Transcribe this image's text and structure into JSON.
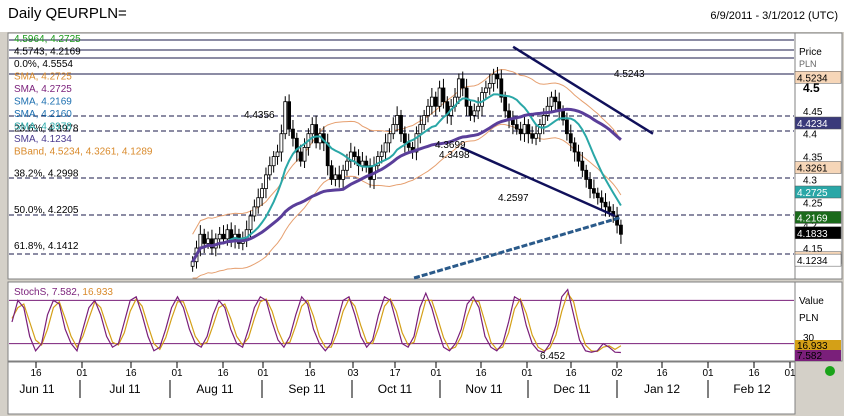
{
  "header": {
    "title": "Daily QEURPLN=",
    "date_range": "6/9/2011 - 3/1/2012 (UTC)"
  },
  "axis": {
    "price_label": "Price",
    "currency": "PLN",
    "value_label": "Value",
    "value_currency": "PLN",
    "price_ticks": [
      "4.5",
      "4.45",
      "4.4",
      "4.35",
      "4.3",
      "4.25",
      "4.2",
      "4.15"
    ],
    "stoch_tick": "30"
  },
  "legend": [
    {
      "text": "4.5964, 4.2725",
      "color": "#1a9a1a"
    },
    {
      "text": "4.5743, 4.2169",
      "color": "#000000"
    },
    {
      "text": "0.0%, 4.5554",
      "color": "#000000"
    },
    {
      "text": "SMA, 4.2725",
      "color": "#d98a2b"
    },
    {
      "text": "SMA, 4.2725",
      "color": "#7a1f7a"
    },
    {
      "text": "SMA, 4.2169",
      "color": "#1c6fb0"
    },
    {
      "text": "SMA, 4.2160",
      "color": "#1c6fb0"
    },
    {
      "text": "SMA, 4.3978",
      "color": "#2aa7a7"
    },
    {
      "text": "SMA, 4.1234",
      "color": "#4b3b8f"
    },
    {
      "text": "BBand, 4.5234, 4.3261, 4.1289",
      "color": "#d98a2b"
    }
  ],
  "fib_levels": [
    {
      "label": "23.6%, 4.3978",
      "value": 4.3978
    },
    {
      "label": "38.2%, 4.2998",
      "value": 4.2998
    },
    {
      "label": "50.0%, 4.2205",
      "value": 4.2205
    },
    {
      "label": "61.8%, 4.1412",
      "value": 4.1412
    }
  ],
  "annotations": [
    "4.4356",
    "4.5243",
    "4.3699",
    "4.3498",
    "4.2597"
  ],
  "price_badges": [
    {
      "text": "4.5234",
      "value": 4.5234,
      "bg": "#f6d6b8",
      "fg": "#000000"
    },
    {
      "text": "4.4234",
      "value": 4.4234,
      "bg": "#3a3a7a",
      "fg": "#ffffff"
    },
    {
      "text": "4.3261",
      "value": 4.3261,
      "bg": "#f6d6b8",
      "fg": "#000000"
    },
    {
      "text": "4.2725",
      "value": 4.2725,
      "bg": "#2aa7a7",
      "fg": "#ffffff"
    },
    {
      "text": "4.2169",
      "value": 4.2169,
      "bg": "#1a6a1a",
      "fg": "#ffffff"
    },
    {
      "text": "4.1833",
      "value": 4.1833,
      "bg": "#000000",
      "fg": "#ffffff"
    },
    {
      "text": "4.1289",
      "value": 4.1289,
      "bg": "#f6d6b8",
      "fg": "#000000"
    },
    {
      "text": "4.1234",
      "value": 4.1234,
      "bg": "#ffffff",
      "fg": "#000000"
    }
  ],
  "stoch": {
    "label": "StochS",
    "k": "7.582",
    "d": "16.933",
    "min_label": "6.452",
    "badges": [
      {
        "text": "16.933",
        "bg": "#d4a017"
      },
      {
        "text": "7.582",
        "bg": "#7a1f7a"
      }
    ]
  },
  "xaxis": {
    "days": [
      "16",
      "01",
      "16",
      "01",
      "16",
      "01",
      "16",
      "03",
      "17",
      "01",
      "16",
      "01",
      "16",
      "02",
      "16",
      "01",
      "16",
      "01"
    ],
    "months": [
      "Jun 11",
      "Jul 11",
      "Aug 11",
      "Sep 11",
      "Oct 11",
      "Nov 11",
      "Dec 11",
      "Jan 12",
      "Feb 12"
    ]
  },
  "chart_data": {
    "type": "candlestick",
    "title": "Daily QEURPLN=",
    "ylim": [
      4.09,
      4.6
    ],
    "y_ticks": [
      4.5,
      4.45,
      4.4,
      4.35,
      4.3,
      4.25,
      4.2,
      4.15
    ],
    "x_start": "2011-08-10",
    "x_end": "2012-01-04",
    "closes": [
      4.12,
      4.15,
      4.18,
      4.16,
      4.17,
      4.15,
      4.17,
      4.18,
      4.17,
      4.19,
      4.17,
      4.18,
      4.16,
      4.17,
      4.19,
      4.22,
      4.24,
      4.26,
      4.28,
      4.31,
      4.33,
      4.35,
      4.36,
      4.4,
      4.47,
      4.41,
      4.39,
      4.36,
      4.34,
      4.37,
      4.4,
      4.42,
      4.38,
      4.4,
      4.38,
      4.33,
      4.3,
      4.31,
      4.3,
      4.32,
      4.34,
      4.36,
      4.35,
      4.33,
      4.34,
      4.33,
      4.3,
      4.33,
      4.35,
      4.36,
      4.38,
      4.4,
      4.42,
      4.44,
      4.4,
      4.38,
      4.37,
      4.36,
      4.4,
      4.42,
      4.44,
      4.46,
      4.48,
      4.46,
      4.5,
      4.47,
      4.44,
      4.46,
      4.48,
      4.52,
      4.5,
      4.46,
      4.44,
      4.45,
      4.46,
      4.49,
      4.5,
      4.51,
      4.53,
      4.52,
      4.48,
      4.45,
      4.43,
      4.42,
      4.41,
      4.4,
      4.42,
      4.4,
      4.39,
      4.4,
      4.42,
      4.44,
      4.46,
      4.48,
      4.47,
      4.45,
      4.43,
      4.4,
      4.38,
      4.36,
      4.34,
      4.32,
      4.3,
      4.28,
      4.27,
      4.26,
      4.25,
      4.24,
      4.23,
      4.22,
      4.2,
      4.18
    ],
    "series": [
      {
        "name": "SMA (fast)",
        "color": "#2aa7a7",
        "last": 4.2725
      },
      {
        "name": "SMA (slow)",
        "color": "#5a3e9a",
        "last": 4.4234
      },
      {
        "name": "SMA (long, dashed)",
        "color": "#2a5a8a",
        "last": 4.2169
      },
      {
        "name": "BBand",
        "color": "#e6a070",
        "upper": 4.5234,
        "middle": 4.3261,
        "lower": 4.1289
      }
    ],
    "trend_channel": [
      {
        "from_date": "2011-11-28",
        "from_value": 4.59,
        "to_date": "2012-01-15",
        "to_value": 4.4
      },
      {
        "from_date": "2011-11-10",
        "from_value": 4.37,
        "to_date": "2012-01-02",
        "to_value": 4.22
      }
    ],
    "stoch": {
      "k": [
        50,
        80,
        70,
        30,
        10,
        20,
        60,
        80,
        75,
        40,
        20,
        10,
        40,
        70,
        80,
        60,
        30,
        15,
        20,
        50,
        80,
        85,
        60,
        30,
        10,
        15,
        40,
        70,
        85,
        70,
        40,
        20,
        15,
        30,
        60,
        80,
        70,
        40,
        20,
        15,
        40,
        70,
        85,
        80,
        50,
        25,
        15,
        30,
        60,
        85,
        75,
        40,
        20,
        10,
        20,
        50,
        80,
        85,
        60,
        30,
        15,
        25,
        60,
        85,
        80,
        50,
        20,
        15,
        30,
        70,
        90,
        70,
        40,
        15,
        10,
        20,
        40,
        75,
        85,
        70,
        30,
        15,
        10,
        20,
        50,
        85,
        80,
        45,
        20,
        10,
        8,
        20,
        45,
        85,
        95,
        60,
        25,
        10,
        8,
        10,
        20,
        15,
        8,
        7.582
      ],
      "d": [
        55,
        70,
        75,
        50,
        25,
        18,
        40,
        70,
        78,
        55,
        30,
        15,
        30,
        55,
        78,
        70,
        45,
        22,
        18,
        35,
        65,
        82,
        72,
        45,
        20,
        12,
        28,
        55,
        78,
        78,
        55,
        30,
        18,
        22,
        45,
        70,
        75,
        55,
        30,
        18,
        28,
        55,
        78,
        82,
        65,
        38,
        20,
        22,
        45,
        72,
        80,
        58,
        30,
        15,
        15,
        35,
        65,
        82,
        72,
        45,
        22,
        20,
        42,
        72,
        82,
        65,
        35,
        18,
        22,
        50,
        80,
        80,
        55,
        28,
        12,
        15,
        30,
        58,
        80,
        78,
        50,
        22,
        12,
        15,
        35,
        68,
        82,
        62,
        32,
        15,
        10,
        14,
        32,
        65,
        90,
        78,
        42,
        18,
        10,
        9,
        15,
        17,
        12,
        16.933
      ],
      "ylim": [
        0,
        100
      ],
      "levels": [
        20,
        80
      ]
    }
  }
}
